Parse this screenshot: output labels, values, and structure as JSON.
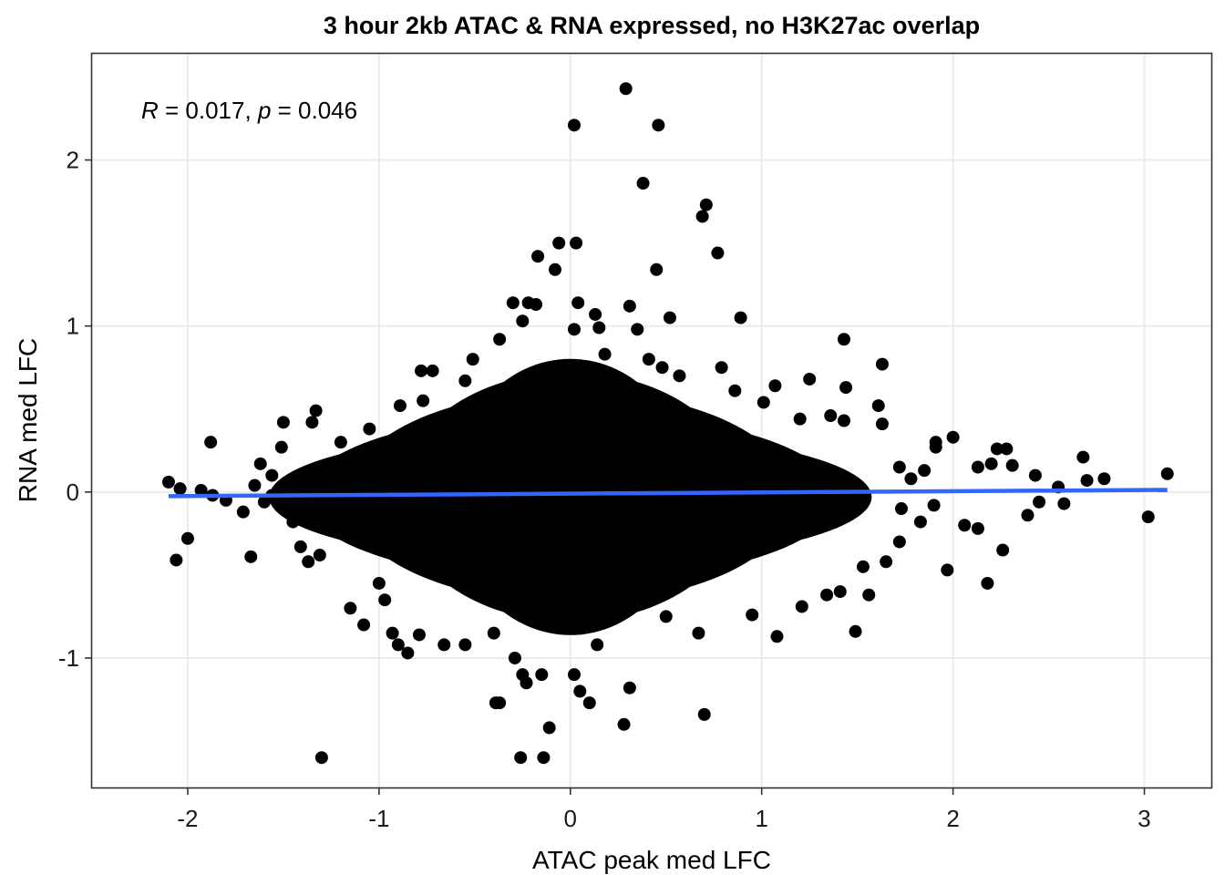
{
  "chart_data": {
    "type": "scatter",
    "title": "3 hour 2kb ATAC & RNA expressed, no H3K27ac overlap",
    "xlabel": "ATAC peak med LFC",
    "ylabel": "RNA med LFC",
    "xlim": [
      -2.5,
      3.35
    ],
    "ylim": [
      -1.78,
      2.64
    ],
    "x_ticks": [
      -2,
      -1,
      0,
      1,
      2,
      3
    ],
    "x_tick_labels": [
      "-2",
      "-1",
      "0",
      "1",
      "2",
      "3"
    ],
    "y_ticks": [
      -1,
      0,
      1,
      2
    ],
    "y_tick_labels": [
      "-1",
      "0",
      "1",
      "2"
    ],
    "grid": true,
    "annotation": {
      "r_symbol": "R",
      "r_text": " = 0.017, ",
      "p_symbol": "p",
      "p_text": " = 0.046"
    },
    "point_color": "#000000",
    "fit_line_color": "#3366ff",
    "fit_line": {
      "x": [
        -2.1,
        3.12
      ],
      "y": [
        -0.025,
        0.013
      ]
    },
    "dense_cloud": {
      "center_x": 0.0,
      "center_y": -0.03,
      "spread_x": 0.9,
      "spread_y": 0.32
    },
    "points": [
      [
        0.29,
        2.43
      ],
      [
        0.02,
        2.21
      ],
      [
        0.46,
        2.21
      ],
      [
        0.38,
        1.86
      ],
      [
        0.71,
        1.73
      ],
      [
        0.69,
        1.66
      ],
      [
        -0.06,
        1.5
      ],
      [
        0.03,
        1.5
      ],
      [
        0.77,
        1.44
      ],
      [
        -0.17,
        1.42
      ],
      [
        0.45,
        1.34
      ],
      [
        -0.08,
        1.34
      ],
      [
        -0.3,
        1.14
      ],
      [
        -0.22,
        1.14
      ],
      [
        -0.18,
        1.13
      ],
      [
        0.04,
        1.14
      ],
      [
        0.13,
        1.07
      ],
      [
        0.31,
        1.12
      ],
      [
        0.52,
        1.05
      ],
      [
        0.89,
        1.05
      ],
      [
        -0.25,
        1.03
      ],
      [
        0.02,
        0.98
      ],
      [
        0.15,
        0.99
      ],
      [
        0.35,
        0.98
      ],
      [
        -0.37,
        0.92
      ],
      [
        1.43,
        0.92
      ],
      [
        -0.51,
        0.8
      ],
      [
        1.63,
        0.77
      ],
      [
        -0.72,
        0.73
      ],
      [
        -0.78,
        0.73
      ],
      [
        1.25,
        0.68
      ],
      [
        1.07,
        0.64
      ],
      [
        -0.77,
        0.55
      ],
      [
        1.44,
        0.63
      ],
      [
        1.61,
        0.52
      ],
      [
        -0.89,
        0.52
      ],
      [
        -1.33,
        0.49
      ],
      [
        -1.35,
        0.42
      ],
      [
        -1.5,
        0.42
      ],
      [
        1.63,
        0.41
      ],
      [
        -1.88,
        0.3
      ],
      [
        -1.51,
        0.27
      ],
      [
        1.91,
        0.3
      ],
      [
        1.91,
        0.27
      ],
      [
        2.0,
        0.33
      ],
      [
        2.23,
        0.26
      ],
      [
        2.28,
        0.26
      ],
      [
        2.13,
        0.15
      ],
      [
        2.2,
        0.17
      ],
      [
        2.31,
        0.16
      ],
      [
        2.43,
        0.1
      ],
      [
        2.68,
        0.21
      ],
      [
        2.7,
        0.07
      ],
      [
        2.79,
        0.08
      ],
      [
        3.12,
        0.11
      ],
      [
        2.55,
        0.03
      ],
      [
        2.58,
        -0.07
      ],
      [
        2.45,
        -0.06
      ],
      [
        -2.1,
        0.06
      ],
      [
        -2.04,
        0.02
      ],
      [
        -1.93,
        0.01
      ],
      [
        -1.87,
        -0.02
      ],
      [
        -1.8,
        -0.05
      ],
      [
        -1.71,
        -0.12
      ],
      [
        -1.65,
        0.04
      ],
      [
        -1.62,
        0.17
      ],
      [
        -1.56,
        0.1
      ],
      [
        -1.45,
        -0.18
      ],
      [
        -2.0,
        -0.28
      ],
      [
        -2.06,
        -0.41
      ],
      [
        -1.67,
        -0.39
      ],
      [
        -1.41,
        -0.33
      ],
      [
        -1.37,
        -0.42
      ],
      [
        -1.31,
        -0.38
      ],
      [
        3.02,
        -0.15
      ],
      [
        2.26,
        -0.35
      ],
      [
        2.18,
        -0.55
      ],
      [
        2.06,
        -0.2
      ],
      [
        1.97,
        -0.47
      ],
      [
        2.13,
        -0.22
      ],
      [
        2.39,
        -0.14
      ],
      [
        1.72,
        -0.3
      ],
      [
        -0.85,
        -0.97
      ],
      [
        -0.93,
        -0.85
      ],
      [
        -0.9,
        -0.92
      ],
      [
        -1.08,
        -0.8
      ],
      [
        -0.97,
        -0.65
      ],
      [
        -1.15,
        -0.7
      ],
      [
        -1.0,
        -0.55
      ],
      [
        -0.79,
        -0.86
      ],
      [
        -0.66,
        -0.92
      ],
      [
        -0.55,
        -0.92
      ],
      [
        -0.4,
        -0.85
      ],
      [
        -0.29,
        -1.0
      ],
      [
        -0.25,
        -1.1
      ],
      [
        -0.37,
        -1.27
      ],
      [
        -0.39,
        -1.27
      ],
      [
        -0.23,
        -1.15
      ],
      [
        -0.15,
        -1.1
      ],
      [
        0.02,
        -1.1
      ],
      [
        0.05,
        -1.2
      ],
      [
        0.1,
        -1.27
      ],
      [
        0.31,
        -1.18
      ],
      [
        0.28,
        -1.4
      ],
      [
        0.7,
        -1.34
      ],
      [
        -0.11,
        -1.42
      ],
      [
        -0.26,
        -1.6
      ],
      [
        -0.14,
        -1.6
      ],
      [
        -1.3,
        -1.6
      ],
      [
        0.14,
        -0.92
      ],
      [
        0.5,
        -0.75
      ],
      [
        0.67,
        -0.85
      ],
      [
        0.95,
        -0.74
      ],
      [
        1.08,
        -0.87
      ],
      [
        1.21,
        -0.69
      ],
      [
        1.49,
        -0.84
      ],
      [
        1.41,
        -0.6
      ],
      [
        1.34,
        -0.62
      ],
      [
        1.56,
        -0.62
      ],
      [
        1.65,
        -0.42
      ],
      [
        1.53,
        -0.45
      ],
      [
        0.79,
        0.75
      ],
      [
        0.86,
        0.61
      ],
      [
        0.48,
        0.75
      ],
      [
        0.57,
        0.7
      ],
      [
        0.18,
        0.83
      ],
      [
        0.41,
        0.8
      ],
      [
        -0.13,
        0.7
      ],
      [
        0.09,
        0.71
      ],
      [
        1.36,
        0.46
      ],
      [
        1.43,
        0.43
      ],
      [
        1.2,
        0.44
      ],
      [
        1.01,
        0.54
      ],
      [
        -0.55,
        0.67
      ],
      [
        -0.28,
        0.55
      ],
      [
        -1.2,
        0.3
      ],
      [
        -1.12,
        0.23
      ],
      [
        -1.05,
        0.38
      ],
      [
        1.72,
        0.15
      ],
      [
        1.78,
        0.08
      ],
      [
        1.85,
        0.13
      ],
      [
        1.73,
        -0.1
      ],
      [
        1.83,
        -0.18
      ],
      [
        1.9,
        -0.08
      ],
      [
        -1.56,
        -0.02
      ],
      [
        -1.48,
        0.06
      ],
      [
        -1.6,
        -0.06
      ]
    ]
  }
}
